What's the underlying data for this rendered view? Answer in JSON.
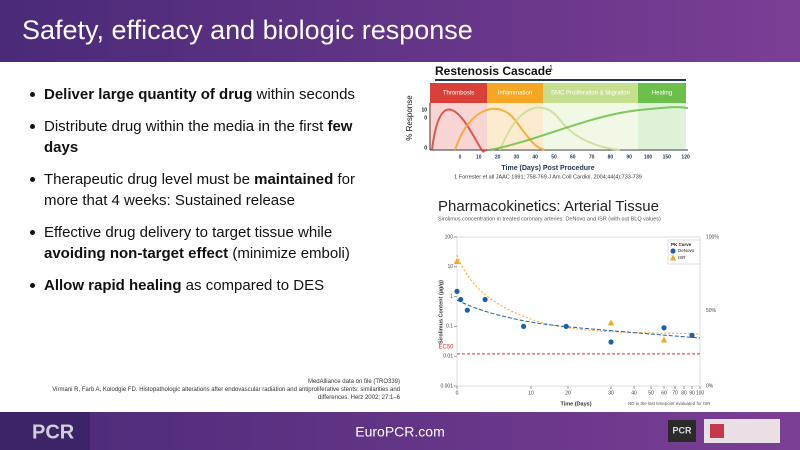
{
  "header": {
    "title": "Safety, efficacy and biologic response"
  },
  "bullets": [
    {
      "segments": [
        {
          "text": "Deliver large quantity of drug",
          "bold": true
        },
        {
          "text": " within seconds",
          "bold": false
        }
      ]
    },
    {
      "segments": [
        {
          "text": "Distribute drug within the media in the first ",
          "bold": false
        },
        {
          "text": "few days",
          "bold": true
        }
      ]
    },
    {
      "segments": [
        {
          "text": "Therapeutic drug level must be ",
          "bold": false
        },
        {
          "text": "maintained",
          "bold": true
        },
        {
          "text": " for more that 4 weeks: Sustained release",
          "bold": false
        }
      ]
    },
    {
      "segments": [
        {
          "text": "Effective drug delivery to target tissue while ",
          "bold": false
        },
        {
          "text": "avoiding non-target effect",
          "bold": true
        },
        {
          "text": " (minimize emboli)",
          "bold": false
        }
      ]
    },
    {
      "segments": [
        {
          "text": "Allow rapid healing",
          "bold": true
        },
        {
          "text": " as compared to DES",
          "bold": false
        }
      ]
    }
  ],
  "cascade": {
    "title": "Restenosis Cascade",
    "title_note": "1",
    "phases": [
      {
        "label": "Thrombosis",
        "color": "#d9403a"
      },
      {
        "label": "Inflammation",
        "color": "#f5a623"
      },
      {
        "label": "SMC Proliferation & Migration",
        "color": "#c5df8f"
      },
      {
        "label": "Healing",
        "color": "#6cbf4a"
      }
    ],
    "y_label": "% Response",
    "y_labels": [
      "10",
      "0",
      "0"
    ],
    "x_labels": [
      "0",
      "10",
      "20",
      "30",
      "40",
      "50",
      "60",
      "70",
      "80",
      "90",
      "100",
      "150",
      "120"
    ],
    "x_label": "Time (Days) Post Procedure",
    "reference": "1 Forrester et all JAAC 1991; 758-769 J Am Coll Cardiol. 2004;44(4):733-739"
  },
  "pk": {
    "title": "Pharmacokinetics: Arterial Tissue",
    "subtitle": "Sirolimus concentration in treated coronary arteries: DeNovo and ISR (with out BLQ values)",
    "y_label": "Sirolimus Content (µg/g)",
    "x_label": "Time (Days)",
    "yscale": "log",
    "ylim": [
      0.001,
      100
    ],
    "yticks": [
      100,
      10,
      1,
      0.1,
      0.01,
      0.001
    ],
    "xlim": [
      0,
      100
    ],
    "xticks": [
      0,
      10,
      20,
      30,
      40,
      50,
      60,
      70,
      80,
      90,
      100
    ],
    "right_ticks": [
      "100%",
      "50%",
      "0%"
    ],
    "legend_title": "PK Curve",
    "series": [
      {
        "name": "DeNovo",
        "color": "#1f5fa8",
        "marker": "circle",
        "x": [
          0,
          0.5,
          1.4,
          3.8,
          9,
          19.5,
          30,
          60,
          90
        ],
        "values": [
          1.5,
          0.8,
          0.35,
          0.8,
          0.1,
          0.1,
          0.03,
          0.09,
          0.05
        ]
      },
      {
        "name": "ISR",
        "color": "#f5a623",
        "marker": "triangle",
        "x": [
          0,
          30,
          60
        ],
        "values": [
          15,
          0.13,
          0.035
        ]
      }
    ],
    "ec50": {
      "label": "EC50",
      "value": 0.012
    },
    "note": "ND in the last timepoint evaluated for ISR"
  },
  "references": [
    "MedAlliance data on file (TRO339)",
    "Virmani R, Farb A, Kolodgie FD. Histopathologic alterations after endovascular radiation and antiproliferative stents: similarities and differences. Herz 2002; 27:1–6"
  ],
  "footer": {
    "site": "EuroPCR.com",
    "logo_left": "PCR",
    "logo_right": "PCR"
  }
}
